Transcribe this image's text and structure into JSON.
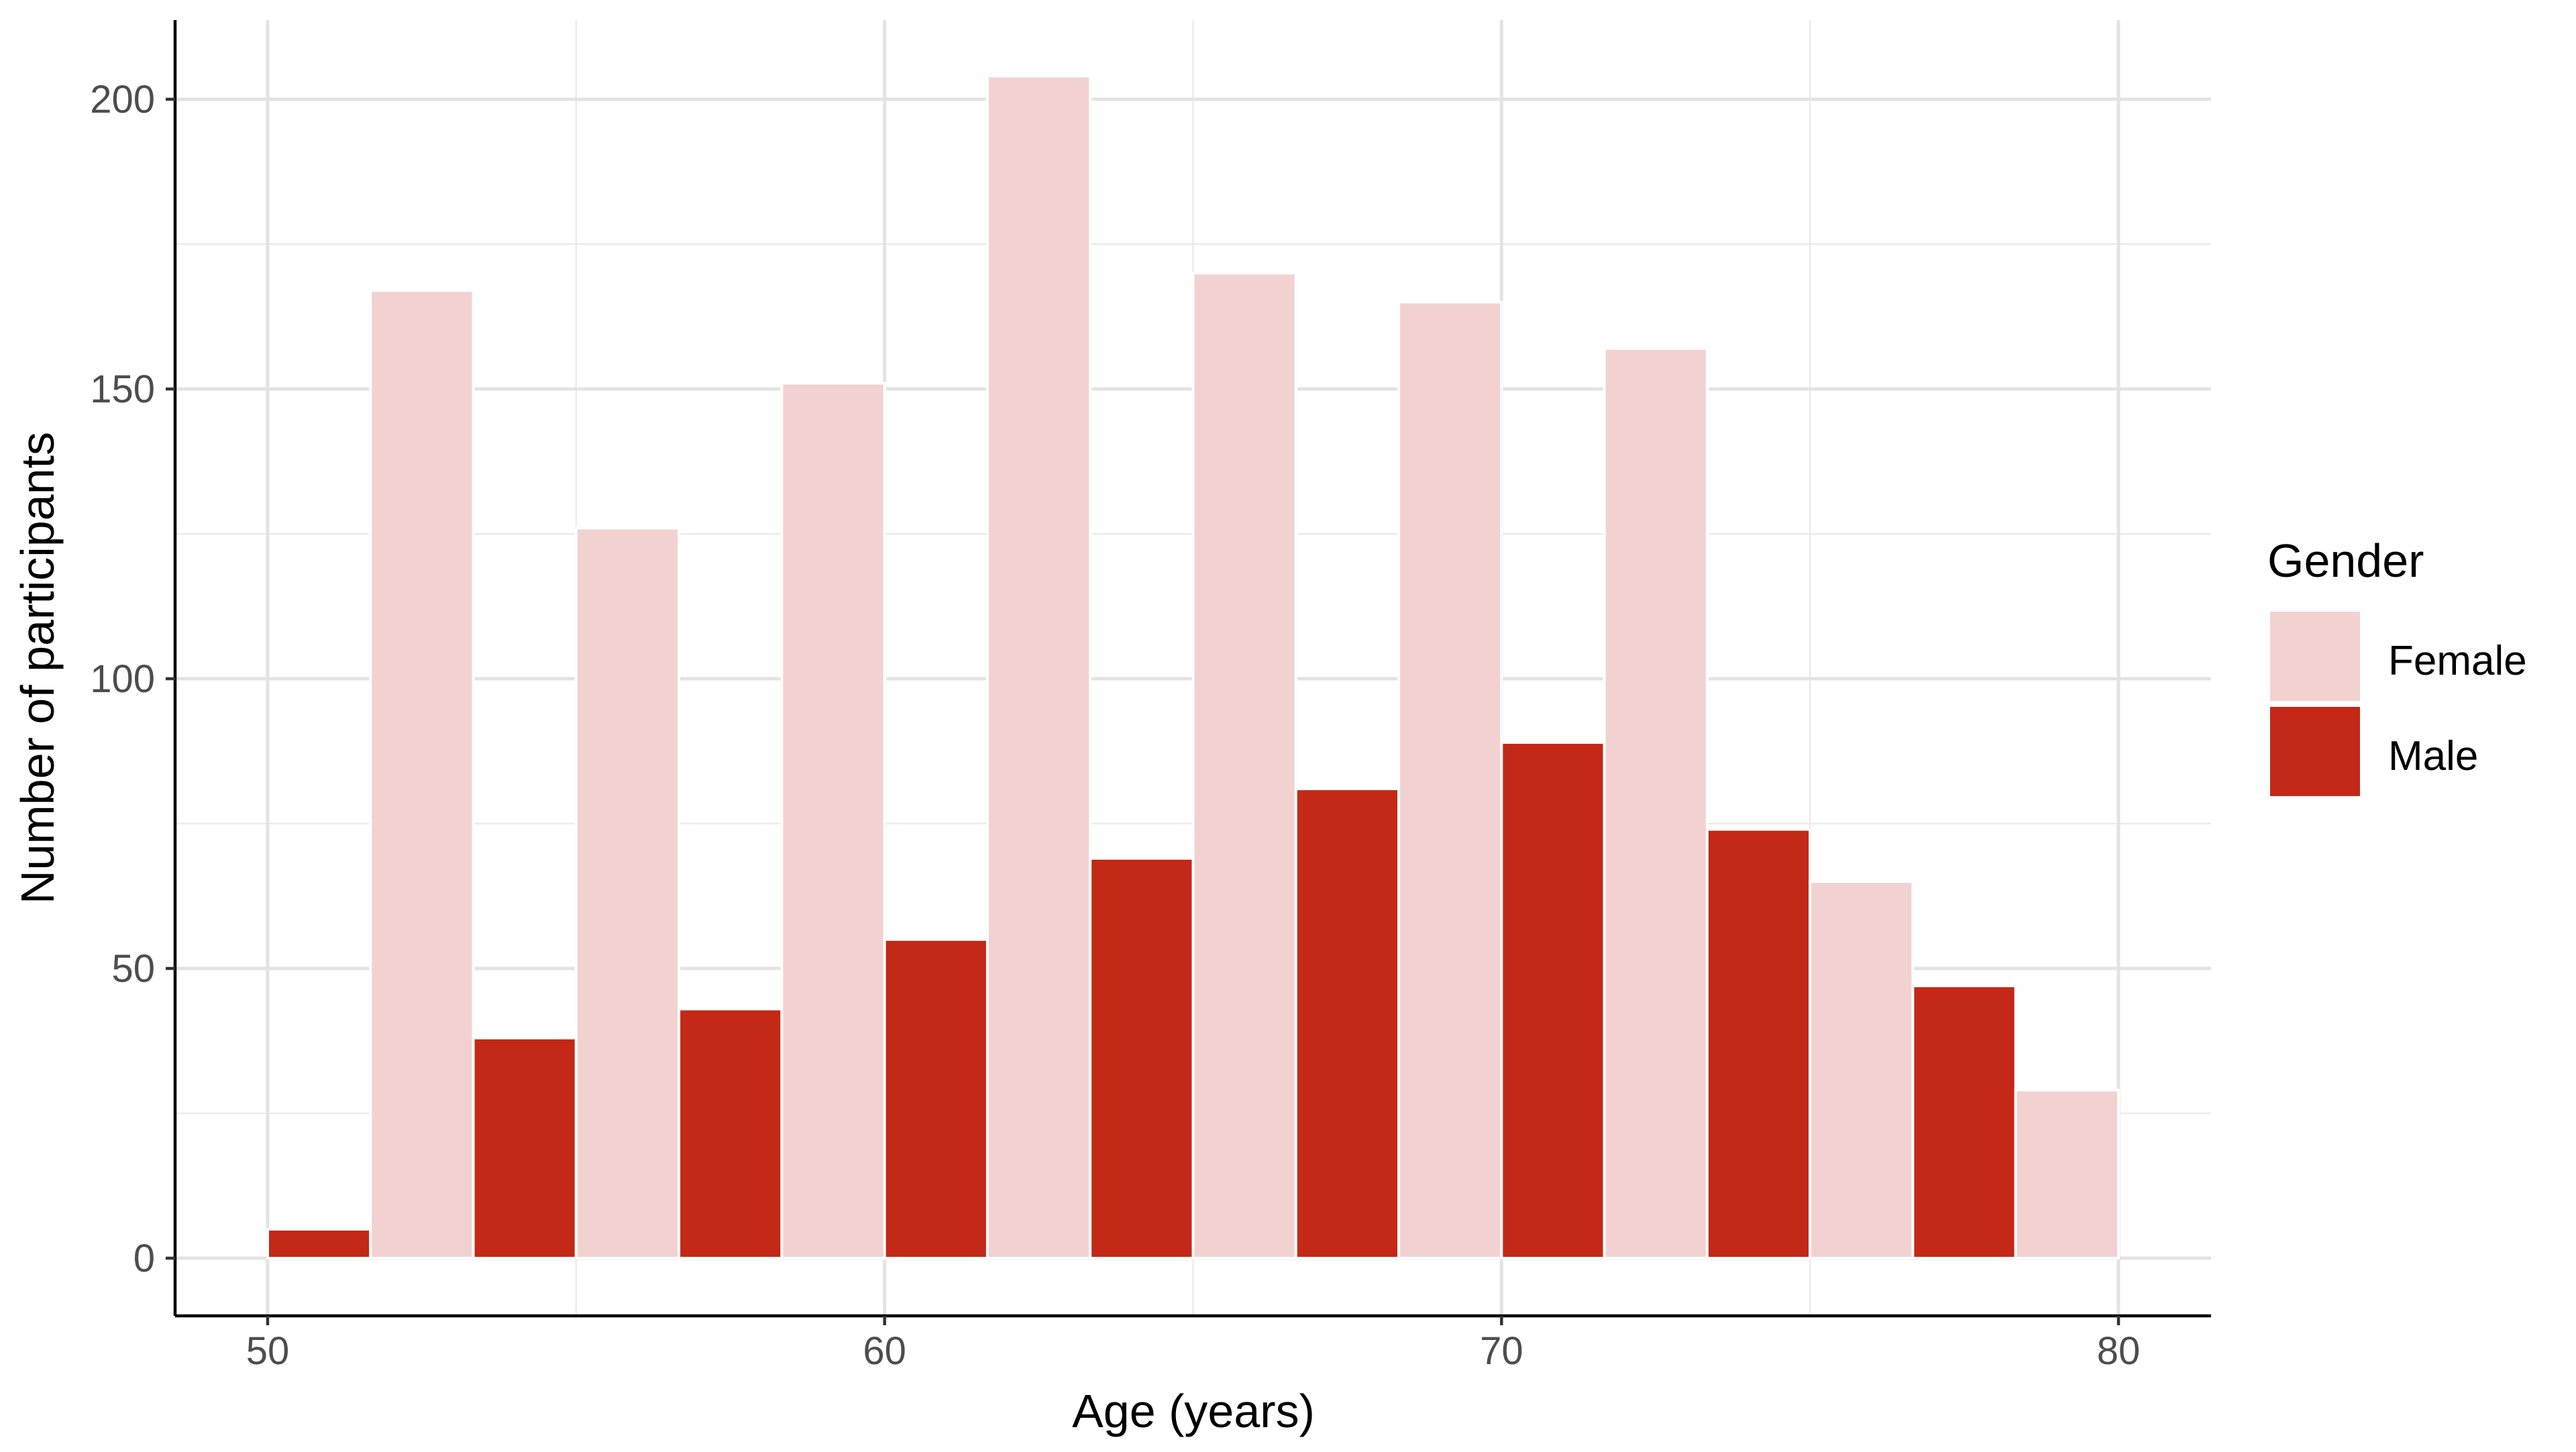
{
  "chart_data": {
    "type": "bar",
    "subtype": "dodged histogram",
    "xlabel": "Age (years)",
    "ylabel": "Number of participants",
    "xlim": [
      48.5,
      81.5
    ],
    "ylim": [
      -10,
      214
    ],
    "x_ticks": [
      50,
      60,
      70,
      80
    ],
    "y_ticks": [
      0,
      50,
      100,
      150,
      200
    ],
    "grid": true,
    "bin_start": 50,
    "bin_width": 3.3333,
    "bins": [
      "50–53.3",
      "53.3–56.7",
      "56.7–60",
      "60–63.3",
      "63.3–66.7",
      "66.7–70",
      "70–73.3",
      "73.3–76.7",
      "76.7–80"
    ],
    "series": [
      {
        "name": "Female",
        "color": "#F2D2D1",
        "values": [
          167,
          126,
          151,
          204,
          170,
          165,
          157,
          65,
          29
        ]
      },
      {
        "name": "Male",
        "color": "#C42816",
        "values": [
          5,
          38,
          43,
          55,
          69,
          81,
          89,
          74,
          47
        ]
      }
    ],
    "legend": {
      "title": "Gender",
      "placement": "right",
      "entries": [
        "Female",
        "Male"
      ]
    }
  }
}
